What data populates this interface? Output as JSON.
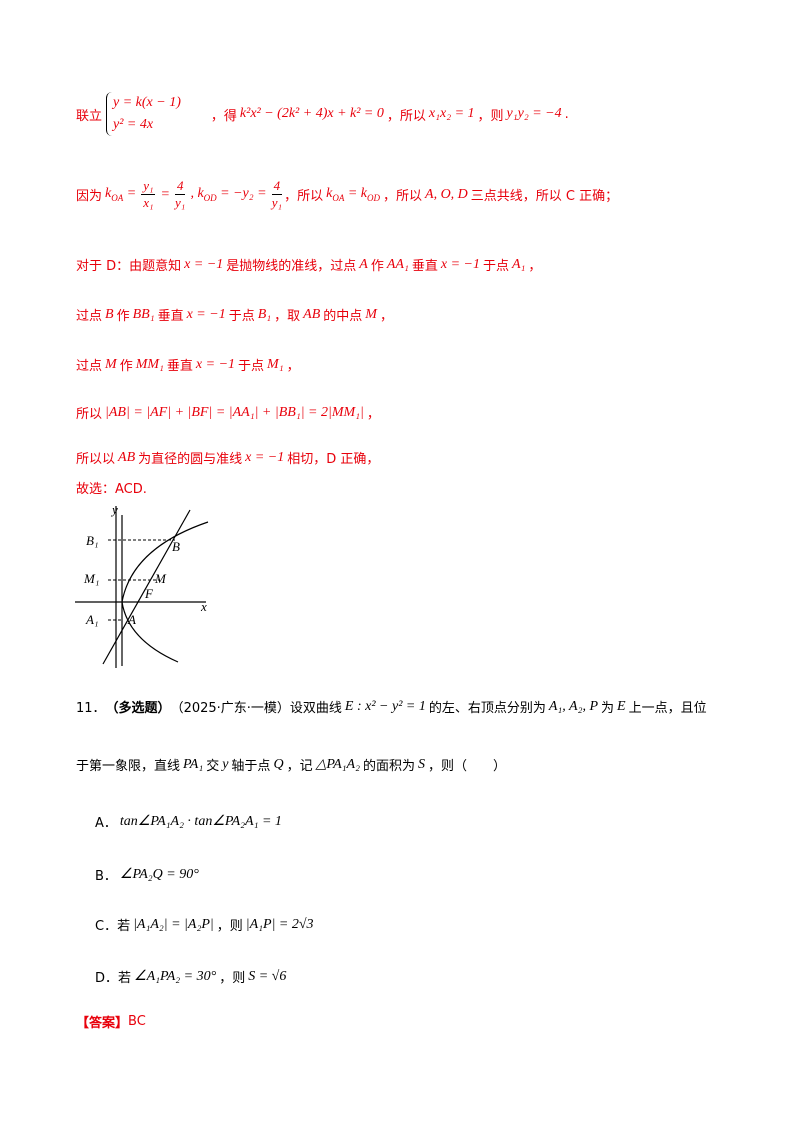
{
  "solution": [
    [
      "联立",
      "y = k(x − 1)",
      "y² = 4x",
      "，得",
      "k²x² − (2k² + 4)x + k² = 0",
      "，所以",
      "x₁x₂ = 1",
      "，则",
      "y₁y₂ = −4",
      "."
    ],
    [
      "因为",
      "k",
      "OA",
      " = ",
      "y₁",
      "x₁",
      " = ",
      "4",
      "y₁",
      ", k",
      "OD",
      " = −y₂ = ",
      "4",
      "y₁",
      "，所以",
      "k",
      "OA",
      " = k",
      "OD",
      "，所以",
      "A, O, D",
      "三点共线，所以 C 正确；"
    ],
    [
      "对于 D：由题意知",
      "x = −1",
      "是抛物线的准线，过点",
      "A",
      "作",
      "AA₁",
      "垂直",
      "x = −1",
      "于点",
      "A₁",
      "，"
    ],
    [
      "过点",
      "B",
      "作",
      "BB₁",
      "垂直",
      "x = −1",
      "于点",
      "B₁",
      "，取",
      "AB",
      "的中点",
      "M",
      "，"
    ],
    [
      "过点",
      "M",
      "作",
      "MM₁",
      "垂直",
      "x = −1",
      "于点",
      "M₁",
      "，"
    ],
    [
      "所以",
      "|AB| = |AF| + |BF| = |AA₁| + |BB₁| = 2|MM₁|",
      "，"
    ],
    [
      "所以以",
      "AB",
      "为直径的圆与准线",
      "x = −1",
      "相切，D 正确，"
    ],
    [
      "故选：ACD."
    ]
  ],
  "figure": {
    "labels": [
      "y",
      "x",
      "B₁",
      "B",
      "M₁",
      "M",
      "F",
      "A₁",
      "A"
    ]
  },
  "question": {
    "stem": [
      [
        "11．",
        "（多选题）",
        "（2025·广东·一模）设双曲线",
        "E : x² − y² = 1",
        "的左、右顶点分别为",
        "A₁, A₂, P",
        "为",
        "E",
        "上一点，且位"
      ],
      [
        "于第一象限，直线",
        "PA₁",
        "交",
        "y",
        "轴于点",
        "Q",
        "，记",
        "△PA₁A₂",
        "的面积为",
        "S",
        "，则（　　）"
      ]
    ],
    "options": [
      [
        "A．",
        "tan∠PA₁A₂ · tan∠PA₂A₁ = 1"
      ],
      [
        "B．",
        "∠PA₂Q = 90°"
      ],
      [
        "C．若",
        "|A₁A₂| = |A₂P|",
        "，则",
        "|A₁P| = 2√3"
      ],
      [
        "D．若",
        "∠A₁PA₂ = 30°",
        "，则",
        "S = √6"
      ]
    ],
    "answer": [
      "【答案】",
      "BC"
    ]
  }
}
